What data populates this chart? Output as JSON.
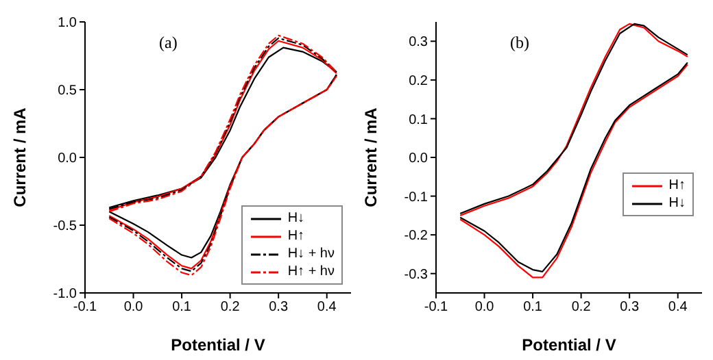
{
  "chart_data": [
    {
      "type": "line",
      "annotations": [
        "(a)"
      ],
      "xlabel": "Potential / V",
      "ylabel": "Current / mA",
      "xlim": [
        -0.1,
        0.45
      ],
      "xticks": [
        -0.1,
        {
          "value": 0,
          "label": "0.0"
        },
        0.1,
        0.2,
        0.3,
        0.4
      ],
      "ylim": [
        -1,
        1
      ],
      "yticks": [
        {
          "value": -1,
          "label": "-1.0"
        },
        -0.5,
        {
          "value": 0,
          "label": "0.0"
        },
        0.5,
        {
          "value": 1,
          "label": "1.0"
        }
      ],
      "legend": "bottom right",
      "grid": false,
      "marker": "none",
      "series": [
        {
          "name": "H↓",
          "color": "#000000",
          "line_style": "solid",
          "x": [
            -0.05,
            0.0,
            0.05,
            0.1,
            0.14,
            0.17,
            0.2,
            0.22,
            0.25,
            0.28,
            0.31,
            0.35,
            0.39,
            0.42
          ],
          "values": [
            -0.37,
            -0.32,
            -0.28,
            -0.23,
            -0.15,
            0.0,
            0.2,
            0.37,
            0.58,
            0.74,
            0.81,
            0.78,
            0.71,
            0.63
          ]
        },
        {
          "color": "#000000",
          "line_style": "solid",
          "x": [
            -0.05,
            0.0,
            0.03,
            0.07,
            0.1,
            0.12,
            0.14,
            0.16,
            0.18,
            0.2,
            0.225,
            0.25,
            0.27,
            0.3,
            0.35,
            0.4,
            0.42
          ],
          "values": [
            -0.4,
            -0.49,
            -0.55,
            -0.65,
            -0.72,
            -0.74,
            -0.7,
            -0.58,
            -0.4,
            -0.2,
            0.0,
            0.1,
            0.2,
            0.3,
            0.4,
            0.5,
            0.61
          ]
        },
        {
          "name": "H↑",
          "color": "#ff0000",
          "line_style": "solid",
          "x": [
            -0.05,
            0.0,
            0.05,
            0.1,
            0.14,
            0.17,
            0.2,
            0.22,
            0.25,
            0.28,
            0.3,
            0.35,
            0.39,
            0.42
          ],
          "values": [
            -0.39,
            -0.33,
            -0.29,
            -0.23,
            -0.14,
            0.02,
            0.24,
            0.42,
            0.64,
            0.8,
            0.86,
            0.81,
            0.72,
            0.62
          ]
        },
        {
          "color": "#ff0000",
          "line_style": "solid",
          "x": [
            -0.05,
            0.0,
            0.03,
            0.07,
            0.1,
            0.12,
            0.14,
            0.16,
            0.18,
            0.2,
            0.225,
            0.25,
            0.27,
            0.3,
            0.35,
            0.4,
            0.42
          ],
          "values": [
            -0.43,
            -0.53,
            -0.6,
            -0.72,
            -0.8,
            -0.82,
            -0.76,
            -0.62,
            -0.42,
            -0.21,
            0.0,
            0.1,
            0.2,
            0.3,
            0.4,
            0.5,
            0.6
          ]
        },
        {
          "name": "H↓ + hν",
          "color": "#000000",
          "line_style": "dashed",
          "x": [
            -0.05,
            0.0,
            0.05,
            0.1,
            0.14,
            0.17,
            0.2,
            0.22,
            0.25,
            0.28,
            0.3,
            0.35,
            0.39,
            0.42
          ],
          "values": [
            -0.38,
            -0.33,
            -0.3,
            -0.24,
            -0.14,
            0.03,
            0.26,
            0.44,
            0.66,
            0.82,
            0.88,
            0.83,
            0.73,
            0.63
          ]
        },
        {
          "color": "#000000",
          "line_style": "dashed",
          "x": [
            -0.05,
            0.0,
            0.03,
            0.07,
            0.1,
            0.12,
            0.14,
            0.16,
            0.18,
            0.2,
            0.225,
            0.25,
            0.27,
            0.3,
            0.35,
            0.4,
            0.42
          ],
          "values": [
            -0.44,
            -0.54,
            -0.62,
            -0.74,
            -0.82,
            -0.84,
            -0.78,
            -0.64,
            -0.43,
            -0.22,
            0.0,
            0.1,
            0.2,
            0.3,
            0.4,
            0.5,
            0.61
          ]
        },
        {
          "name": "H↑ + hν",
          "color": "#ff0000",
          "line_style": "dashed",
          "x": [
            -0.05,
            0.0,
            0.05,
            0.1,
            0.14,
            0.17,
            0.2,
            0.22,
            0.25,
            0.28,
            0.3,
            0.35,
            0.39,
            0.42
          ],
          "values": [
            -0.4,
            -0.34,
            -0.31,
            -0.25,
            -0.14,
            0.04,
            0.28,
            0.46,
            0.68,
            0.84,
            0.9,
            0.84,
            0.74,
            0.63
          ]
        },
        {
          "color": "#ff0000",
          "line_style": "dashed",
          "x": [
            -0.05,
            0.0,
            0.03,
            0.07,
            0.1,
            0.12,
            0.14,
            0.16,
            0.18,
            0.2,
            0.225,
            0.25,
            0.27,
            0.3,
            0.35,
            0.4,
            0.42
          ],
          "values": [
            -0.45,
            -0.56,
            -0.64,
            -0.77,
            -0.85,
            -0.87,
            -0.81,
            -0.66,
            -0.45,
            -0.23,
            0.0,
            0.1,
            0.2,
            0.3,
            0.4,
            0.5,
            0.6
          ]
        }
      ]
    },
    {
      "type": "line",
      "annotations": [
        "(b)"
      ],
      "xlabel": "Potential / V",
      "ylabel": "Current / mA",
      "xlim": [
        -0.1,
        0.45
      ],
      "xticks": [
        -0.1,
        {
          "value": 0,
          "label": "0.0"
        },
        0.1,
        0.2,
        0.3,
        0.4
      ],
      "ylim": [
        -0.35,
        0.35
      ],
      "yticks": [
        -0.3,
        -0.2,
        -0.1,
        {
          "value": 0,
          "label": "0.0"
        },
        0.1,
        0.2,
        0.3
      ],
      "legend": "right",
      "grid": false,
      "marker": "none",
      "series": [
        {
          "name": "H↑",
          "color": "#ff0000",
          "line_style": "solid",
          "x": [
            -0.05,
            0.0,
            0.05,
            0.1,
            0.13,
            0.15,
            0.17,
            0.2,
            0.22,
            0.25,
            0.28,
            0.3,
            0.33,
            0.36,
            0.4,
            0.42
          ],
          "values": [
            -0.15,
            -0.125,
            -0.105,
            -0.075,
            -0.04,
            -0.01,
            0.03,
            0.12,
            0.18,
            0.26,
            0.33,
            0.345,
            0.335,
            0.3,
            0.275,
            0.26
          ]
        },
        {
          "color": "#ff0000",
          "line_style": "solid",
          "x": [
            -0.05,
            0.0,
            0.03,
            0.07,
            0.1,
            0.12,
            0.15,
            0.18,
            0.2,
            0.22,
            0.25,
            0.27,
            0.3,
            0.35,
            0.4,
            0.42
          ],
          "values": [
            -0.16,
            -0.2,
            -0.23,
            -0.28,
            -0.31,
            -0.31,
            -0.26,
            -0.18,
            -0.11,
            -0.04,
            0.04,
            0.09,
            0.13,
            0.17,
            0.21,
            0.24
          ]
        },
        {
          "name": "H↓",
          "color": "#000000",
          "line_style": "solid",
          "x": [
            -0.05,
            0.0,
            0.05,
            0.1,
            0.13,
            0.15,
            0.17,
            0.2,
            0.22,
            0.25,
            0.28,
            0.31,
            0.33,
            0.36,
            0.4,
            0.42
          ],
          "values": [
            -0.145,
            -0.12,
            -0.1,
            -0.07,
            -0.035,
            -0.005,
            0.025,
            0.11,
            0.17,
            0.25,
            0.32,
            0.345,
            0.34,
            0.31,
            0.28,
            0.265
          ]
        },
        {
          "color": "#000000",
          "line_style": "solid",
          "x": [
            -0.05,
            0.0,
            0.03,
            0.07,
            0.1,
            0.12,
            0.15,
            0.18,
            0.2,
            0.22,
            0.25,
            0.27,
            0.3,
            0.35,
            0.4,
            0.42
          ],
          "values": [
            -0.155,
            -0.19,
            -0.22,
            -0.27,
            -0.29,
            -0.295,
            -0.25,
            -0.17,
            -0.1,
            -0.03,
            0.05,
            0.095,
            0.135,
            0.175,
            0.215,
            0.245
          ]
        }
      ]
    }
  ]
}
